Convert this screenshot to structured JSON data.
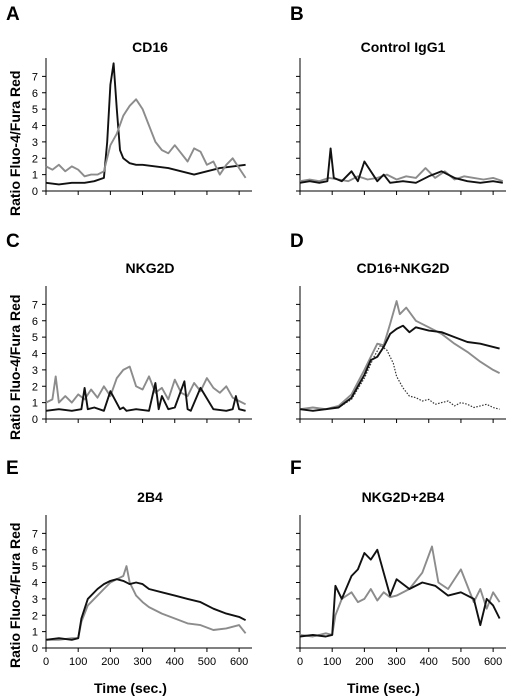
{
  "figure": {
    "y_axis_label": "Ratio Fluo-4/Fura Red",
    "x_axis_label": "Time (sec.)"
  },
  "colors": {
    "black_trace": "#111111",
    "gray_trace": "#8c8c8c",
    "dotted_trace": "#333333"
  },
  "chart_data": [
    {
      "panel": "A",
      "title": "CD16",
      "type": "line",
      "xlim": [
        0,
        640
      ],
      "ylim": [
        0,
        8
      ],
      "yticks": [
        "0",
        "1",
        "2",
        "3",
        "4",
        "5",
        "6",
        "7"
      ],
      "series": [
        {
          "style": "black",
          "x": [
            0,
            40,
            80,
            100,
            120,
            150,
            180,
            190,
            200,
            210,
            220,
            230,
            240,
            260,
            280,
            300,
            340,
            380,
            420,
            460,
            500,
            540,
            580,
            620
          ],
          "y": [
            0.5,
            0.4,
            0.5,
            0.5,
            0.5,
            0.6,
            0.8,
            3.0,
            6.5,
            7.8,
            5.0,
            2.5,
            2.0,
            1.7,
            1.6,
            1.6,
            1.5,
            1.4,
            1.2,
            1.0,
            1.2,
            1.4,
            1.5,
            1.6
          ]
        },
        {
          "style": "gray",
          "x": [
            0,
            20,
            40,
            60,
            80,
            100,
            120,
            140,
            160,
            180,
            200,
            220,
            240,
            260,
            280,
            300,
            320,
            340,
            360,
            380,
            400,
            420,
            440,
            460,
            480,
            500,
            520,
            540,
            560,
            580,
            600,
            620
          ],
          "y": [
            1.5,
            1.3,
            1.6,
            1.2,
            1.5,
            1.3,
            0.9,
            1.0,
            1.0,
            1.2,
            2.8,
            3.5,
            4.6,
            5.2,
            5.6,
            5.0,
            4.0,
            3.0,
            2.5,
            2.3,
            2.8,
            2.3,
            1.8,
            2.6,
            2.4,
            1.6,
            1.8,
            1.0,
            1.6,
            2.0,
            1.4,
            0.8
          ]
        }
      ]
    },
    {
      "panel": "B",
      "title": "Control IgG1",
      "type": "line",
      "xlim": [
        0,
        640
      ],
      "ylim": [
        0,
        8
      ],
      "yticks": [
        "",
        "",
        "",
        "",
        "",
        "",
        "",
        ""
      ],
      "series": [
        {
          "style": "gray",
          "x": [
            0,
            30,
            60,
            90,
            120,
            150,
            180,
            210,
            240,
            270,
            300,
            330,
            360,
            390,
            420,
            450,
            480,
            510,
            540,
            570,
            600,
            630
          ],
          "y": [
            0.6,
            0.7,
            0.6,
            0.8,
            0.7,
            0.6,
            0.9,
            0.7,
            0.8,
            1.0,
            0.7,
            0.9,
            0.8,
            1.4,
            0.8,
            1.2,
            0.7,
            0.9,
            0.8,
            0.7,
            0.8,
            0.6
          ]
        },
        {
          "style": "black",
          "x": [
            0,
            30,
            60,
            85,
            95,
            105,
            130,
            160,
            180,
            200,
            240,
            260,
            280,
            320,
            360,
            400,
            440,
            480,
            520,
            560,
            600,
            630
          ],
          "y": [
            0.5,
            0.6,
            0.5,
            0.6,
            2.6,
            0.8,
            0.6,
            1.2,
            0.6,
            1.8,
            0.6,
            1.0,
            0.5,
            0.6,
            0.5,
            0.9,
            1.2,
            0.8,
            0.6,
            0.5,
            0.6,
            0.5
          ]
        }
      ]
    },
    {
      "panel": "C",
      "title": "NKG2D",
      "type": "line",
      "xlim": [
        0,
        640
      ],
      "ylim": [
        0,
        8
      ],
      "yticks": [
        "0",
        "1",
        "2",
        "3",
        "4",
        "5",
        "6",
        "7"
      ],
      "series": [
        {
          "style": "gray",
          "x": [
            0,
            20,
            30,
            40,
            60,
            80,
            100,
            120,
            140,
            160,
            180,
            200,
            220,
            240,
            260,
            280,
            300,
            320,
            340,
            360,
            380,
            400,
            420,
            440,
            460,
            480,
            500,
            520,
            540,
            560,
            580,
            600,
            620
          ],
          "y": [
            1.0,
            1.2,
            2.6,
            1.0,
            1.4,
            1.0,
            1.5,
            1.2,
            1.8,
            1.3,
            2.0,
            1.4,
            2.5,
            3.0,
            3.2,
            2.0,
            1.8,
            2.6,
            1.6,
            1.9,
            1.2,
            2.4,
            1.6,
            1.4,
            2.2,
            1.7,
            2.5,
            1.9,
            1.6,
            2.0,
            1.3,
            1.1,
            0.9
          ]
        },
        {
          "style": "black",
          "x": [
            0,
            40,
            80,
            110,
            120,
            130,
            150,
            180,
            200,
            230,
            240,
            250,
            280,
            320,
            340,
            350,
            360,
            380,
            400,
            430,
            440,
            450,
            480,
            520,
            560,
            580,
            590,
            600,
            620
          ],
          "y": [
            0.5,
            0.6,
            0.5,
            0.6,
            1.9,
            0.6,
            0.7,
            0.5,
            1.7,
            0.6,
            0.7,
            0.5,
            0.6,
            0.5,
            2.2,
            0.6,
            1.4,
            0.6,
            0.7,
            2.3,
            0.6,
            0.5,
            1.9,
            0.6,
            0.5,
            0.6,
            1.4,
            0.6,
            0.5
          ]
        }
      ]
    },
    {
      "panel": "D",
      "title": "CD16+NKG2D",
      "type": "line",
      "xlim": [
        0,
        640
      ],
      "ylim": [
        0,
        8
      ],
      "yticks": [
        "",
        "",
        "",
        "",
        "",
        "",
        "",
        ""
      ],
      "series": [
        {
          "style": "dotted",
          "x": [
            0,
            40,
            80,
            120,
            160,
            200,
            230,
            250,
            270,
            290,
            300,
            320,
            340,
            360,
            380,
            400,
            420,
            440,
            460,
            480,
            500,
            520,
            540,
            560,
            580,
            600,
            620
          ],
          "y": [
            0.6,
            0.5,
            0.6,
            0.7,
            1.2,
            2.5,
            3.8,
            4.5,
            4.2,
            3.4,
            2.6,
            1.9,
            1.4,
            1.3,
            1.1,
            1.2,
            0.9,
            1.0,
            1.1,
            0.8,
            1.0,
            0.9,
            0.7,
            0.8,
            0.9,
            0.7,
            0.6
          ]
        },
        {
          "style": "gray",
          "x": [
            0,
            40,
            80,
            120,
            160,
            200,
            220,
            240,
            260,
            280,
            300,
            310,
            330,
            360,
            400,
            440,
            480,
            520,
            560,
            600,
            620
          ],
          "y": [
            0.6,
            0.7,
            0.6,
            0.8,
            1.5,
            3.0,
            3.8,
            4.6,
            4.5,
            5.8,
            7.2,
            6.4,
            6.8,
            6.0,
            5.6,
            5.2,
            4.6,
            4.1,
            3.5,
            3.0,
            2.8
          ]
        },
        {
          "style": "black",
          "x": [
            0,
            40,
            80,
            120,
            160,
            200,
            220,
            240,
            260,
            280,
            300,
            320,
            340,
            360,
            400,
            440,
            480,
            520,
            560,
            600,
            620
          ],
          "y": [
            0.6,
            0.5,
            0.6,
            0.7,
            1.3,
            2.7,
            3.6,
            3.8,
            4.4,
            5.2,
            5.5,
            5.7,
            5.3,
            5.6,
            5.4,
            5.3,
            5.0,
            4.7,
            4.6,
            4.4,
            4.3
          ]
        }
      ]
    },
    {
      "panel": "E",
      "title": "2B4",
      "type": "line",
      "xlim": [
        0,
        640
      ],
      "ylim": [
        0,
        8
      ],
      "yticks": [
        "0",
        "1",
        "2",
        "3",
        "4",
        "5",
        "6",
        "7"
      ],
      "xticks": [
        "0",
        "100",
        "200",
        "300",
        "400",
        "500",
        "600"
      ],
      "series": [
        {
          "style": "gray",
          "x": [
            0,
            40,
            80,
            100,
            110,
            130,
            160,
            180,
            200,
            220,
            240,
            250,
            260,
            280,
            300,
            320,
            360,
            400,
            440,
            480,
            520,
            560,
            600,
            620
          ],
          "y": [
            0.5,
            0.5,
            0.6,
            0.6,
            1.6,
            2.6,
            3.2,
            3.6,
            4.0,
            4.2,
            4.4,
            5.0,
            4.0,
            3.2,
            2.8,
            2.5,
            2.1,
            1.8,
            1.5,
            1.4,
            1.1,
            1.2,
            1.4,
            0.9
          ]
        },
        {
          "style": "black",
          "x": [
            0,
            40,
            80,
            100,
            110,
            130,
            160,
            180,
            200,
            220,
            240,
            260,
            280,
            300,
            320,
            360,
            400,
            440,
            480,
            520,
            560,
            600,
            620
          ],
          "y": [
            0.5,
            0.6,
            0.5,
            0.6,
            1.8,
            3.0,
            3.6,
            3.9,
            4.1,
            4.2,
            4.1,
            3.9,
            4.0,
            3.9,
            3.6,
            3.4,
            3.2,
            3.0,
            2.8,
            2.4,
            2.1,
            1.9,
            1.7
          ]
        }
      ]
    },
    {
      "panel": "F",
      "title": "NKG2D+2B4",
      "type": "line",
      "xlim": [
        0,
        640
      ],
      "ylim": [
        0,
        8
      ],
      "yticks": [
        "",
        "",
        "",
        "",
        "",
        "",
        "",
        ""
      ],
      "xticks": [
        "0",
        "100",
        "200",
        "300",
        "400",
        "500",
        "600"
      ],
      "series": [
        {
          "style": "gray",
          "x": [
            0,
            40,
            80,
            100,
            110,
            130,
            160,
            180,
            200,
            220,
            240,
            260,
            280,
            300,
            340,
            380,
            410,
            430,
            460,
            500,
            540,
            560,
            580,
            600,
            620
          ],
          "y": [
            0.8,
            0.7,
            0.9,
            0.8,
            2.0,
            3.0,
            3.4,
            2.8,
            3.0,
            3.6,
            2.9,
            3.4,
            3.1,
            3.2,
            3.6,
            4.6,
            6.2,
            4.0,
            3.6,
            4.8,
            2.8,
            3.6,
            2.4,
            3.4,
            2.8
          ]
        },
        {
          "style": "black",
          "x": [
            0,
            40,
            80,
            100,
            110,
            130,
            160,
            180,
            200,
            220,
            240,
            260,
            280,
            300,
            340,
            380,
            420,
            460,
            500,
            540,
            560,
            580,
            600,
            620
          ],
          "y": [
            0.7,
            0.8,
            0.7,
            0.8,
            3.8,
            3.0,
            4.4,
            4.8,
            5.8,
            5.4,
            6.0,
            4.6,
            3.2,
            4.2,
            3.6,
            4.0,
            3.8,
            3.2,
            3.4,
            3.0,
            1.4,
            3.0,
            2.6,
            1.8
          ]
        }
      ]
    }
  ]
}
